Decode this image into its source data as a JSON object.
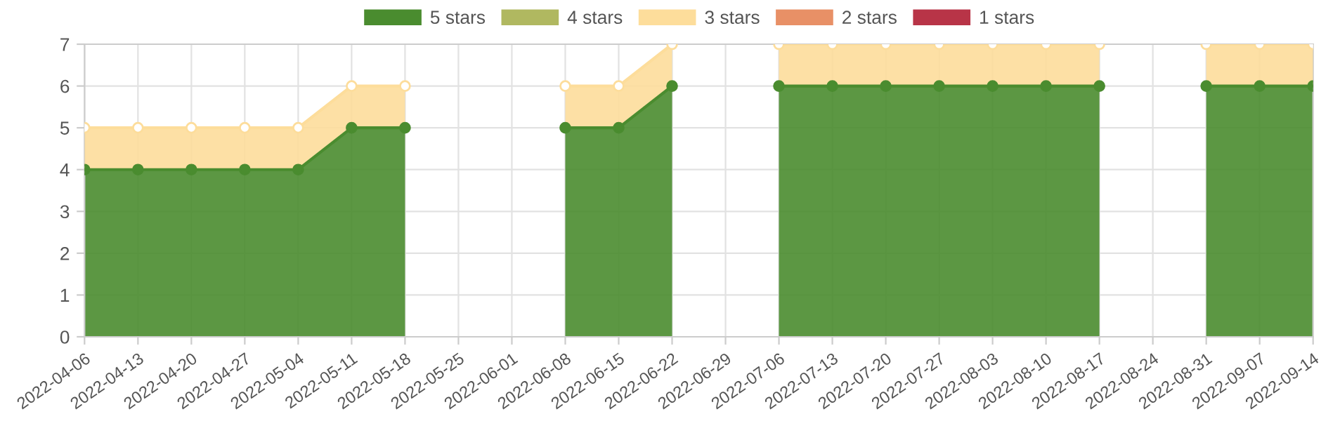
{
  "chart_data": {
    "type": "area",
    "stacked": true,
    "categories": [
      "2022-04-06",
      "2022-04-13",
      "2022-04-20",
      "2022-04-27",
      "2022-05-04",
      "2022-05-11",
      "2022-05-18",
      "2022-05-25",
      "2022-06-01",
      "2022-06-08",
      "2022-06-15",
      "2022-06-22",
      "2022-06-29",
      "2022-07-06",
      "2022-07-13",
      "2022-07-20",
      "2022-07-27",
      "2022-08-03",
      "2022-08-10",
      "2022-08-17",
      "2022-08-24",
      "2022-08-31",
      "2022-09-07",
      "2022-09-14"
    ],
    "series": [
      {
        "name": "5 stars",
        "color": "#4a8c2f",
        "values": [
          4,
          4,
          4,
          4,
          4,
          5,
          5,
          null,
          null,
          5,
          5,
          6,
          null,
          6,
          6,
          6,
          6,
          6,
          6,
          6,
          null,
          6,
          6,
          6
        ]
      },
      {
        "name": "4 stars",
        "color": "#b0b860",
        "values": [
          null,
          null,
          null,
          null,
          null,
          null,
          null,
          null,
          null,
          null,
          null,
          null,
          null,
          null,
          null,
          null,
          null,
          null,
          null,
          null,
          null,
          null,
          null,
          null
        ]
      },
      {
        "name": "3 stars",
        "color": "#fddd9b",
        "values": [
          1,
          1,
          1,
          1,
          1,
          1,
          1,
          null,
          null,
          1,
          1,
          1,
          null,
          1,
          1,
          1,
          1,
          1,
          1,
          1,
          null,
          1,
          1,
          1
        ]
      },
      {
        "name": "2 stars",
        "color": "#e89066",
        "values": [
          null,
          null,
          null,
          null,
          null,
          null,
          null,
          null,
          null,
          null,
          null,
          null,
          null,
          null,
          null,
          null,
          null,
          null,
          null,
          null,
          null,
          null,
          null,
          null
        ]
      },
      {
        "name": "1 stars",
        "color": "#b83447",
        "values": [
          null,
          null,
          null,
          null,
          null,
          null,
          null,
          null,
          null,
          null,
          null,
          null,
          null,
          null,
          null,
          null,
          null,
          null,
          null,
          null,
          null,
          null,
          null,
          null
        ]
      }
    ],
    "ylim": [
      0,
      7
    ],
    "yticks": [
      0,
      1,
      2,
      3,
      4,
      5,
      6,
      7
    ],
    "grid": true,
    "legend": "top",
    "marker": "circle"
  }
}
